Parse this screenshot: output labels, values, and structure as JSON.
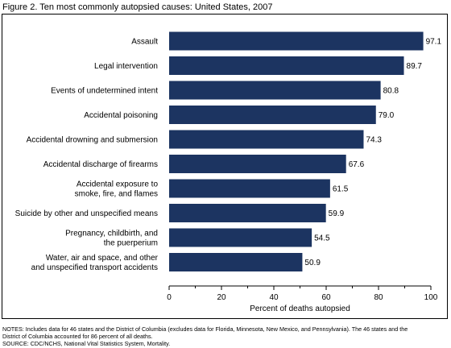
{
  "figure": {
    "title": "Figure 2. Ten most commonly autopsied causes: United States, 2007"
  },
  "chart_data": {
    "type": "bar",
    "orientation": "horizontal",
    "categories": [
      [
        "Assault"
      ],
      [
        "Legal intervention"
      ],
      [
        "Events of undetermined intent"
      ],
      [
        "Accidental poisoning"
      ],
      [
        "Accidental drowning and submersion"
      ],
      [
        "Accidental discharge of firearms"
      ],
      [
        "Accidental exposure to",
        "smoke, fire, and flames"
      ],
      [
        "Suicide by other and unspecified means"
      ],
      [
        "Pregnancy, childbirth, and",
        "the puerperium"
      ],
      [
        "Water, air and space, and other",
        "and unspecified transport accidents"
      ]
    ],
    "values": [
      97.1,
      89.7,
      80.8,
      79.0,
      74.3,
      67.6,
      61.5,
      59.9,
      54.5,
      50.9
    ],
    "value_labels": [
      "97.1",
      "89.7",
      "80.8",
      "79.0",
      "74.3",
      "67.6",
      "61.5",
      "59.9",
      "54.5",
      "50.9"
    ],
    "xlabel": "Percent of deaths autopsied",
    "xlim": [
      0,
      100
    ],
    "xticks": [
      "0",
      "20",
      "40",
      "60",
      "80",
      "100"
    ],
    "grid": false,
    "bar_color": "#1c3461"
  },
  "notes": {
    "line1": "NOTES: Includes data for 46 states and the District of Columbia (excludes data for Florida, Minnesota, New Mexico, and Pennsylvania). The 46 states and the",
    "line2": "District of Columbia accounted for 86 percent of all deaths.",
    "line3": "SOURCE: CDC/NCHS, National Vital Statistics System, Mortality."
  }
}
